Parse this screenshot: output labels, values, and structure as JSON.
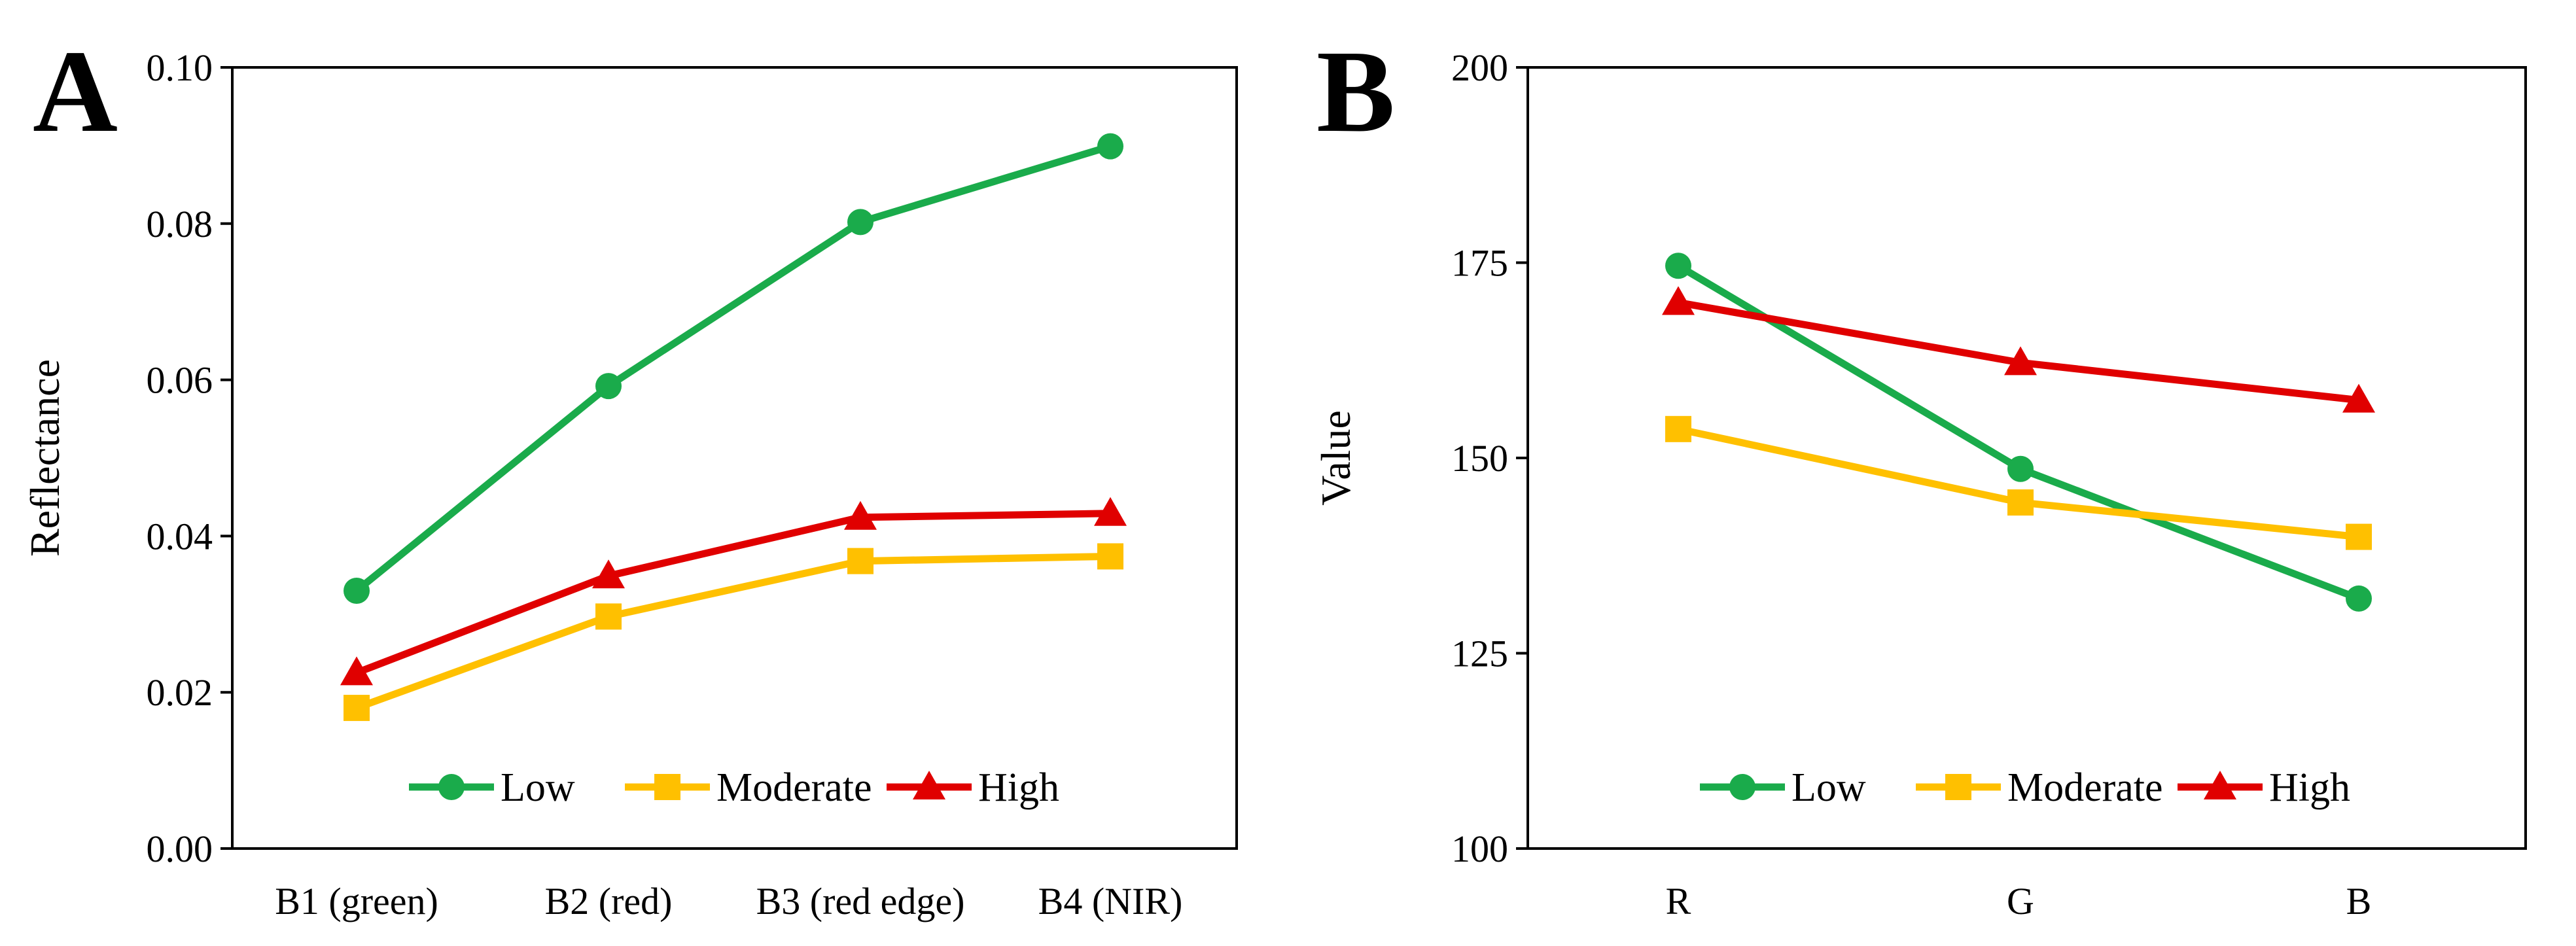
{
  "chart_data": [
    {
      "panel": "A",
      "type": "line",
      "categories": [
        "B1 (green)",
        "B2 (red)",
        "B3 (red edge)",
        "B4 (NIR)"
      ],
      "ylabel": "Reflectance",
      "xlabel": "",
      "ylim": [
        0,
        0.1
      ],
      "yticks": [
        0.0,
        0.02,
        0.04,
        0.06,
        0.08,
        0.1
      ],
      "ytick_labels": [
        "0.00",
        "0.02",
        "0.04",
        "0.06",
        "0.08",
        "0.10"
      ],
      "grid": false,
      "legend": "bottom",
      "series": [
        {
          "name": "Low",
          "color": "#1aab4b",
          "marker": "circle",
          "values": [
            0.033,
            0.0592,
            0.0802,
            0.0899
          ]
        },
        {
          "name": "Moderate",
          "color": "#ffc000",
          "marker": "square",
          "values": [
            0.018,
            0.0297,
            0.0368,
            0.0374
          ]
        },
        {
          "name": "High",
          "color": "#e00000",
          "marker": "triangle",
          "values": [
            0.0225,
            0.0349,
            0.0424,
            0.0429
          ]
        }
      ]
    },
    {
      "panel": "B",
      "type": "line",
      "categories": [
        "R",
        "G",
        "B"
      ],
      "ylabel": "Value",
      "xlabel": "",
      "ylim": [
        100,
        200
      ],
      "yticks": [
        100,
        125,
        150,
        175,
        200
      ],
      "ytick_labels": [
        "100",
        "125",
        "150",
        "175",
        "200"
      ],
      "grid": false,
      "legend": "bottom",
      "series": [
        {
          "name": "Low",
          "color": "#1aab4b",
          "marker": "circle",
          "values": [
            174.6,
            148.6,
            132.0
          ]
        },
        {
          "name": "Moderate",
          "color": "#ffc000",
          "marker": "square",
          "values": [
            153.7,
            144.3,
            139.9
          ]
        },
        {
          "name": "High",
          "color": "#e00000",
          "marker": "triangle",
          "values": [
            169.9,
            162.2,
            157.4
          ]
        }
      ]
    }
  ]
}
